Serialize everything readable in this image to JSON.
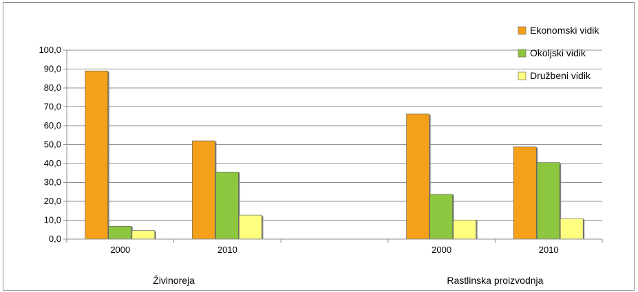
{
  "chart_data": {
    "type": "bar",
    "groups": [
      {
        "label": "Živinoreja",
        "categories": [
          "2000",
          "2010"
        ]
      },
      {
        "label": "Rastlinska proizvodnja",
        "categories": [
          "2000",
          "2010"
        ]
      }
    ],
    "series": [
      {
        "name": "Ekonomski vidik",
        "color": "#F5A01A",
        "values": [
          89.0,
          52.0,
          66.2,
          48.8
        ]
      },
      {
        "name": "Okoljski vidik",
        "color": "#8DC63F",
        "values": [
          6.8,
          35.5,
          23.7,
          40.5
        ]
      },
      {
        "name": "Družbeni vidik",
        "color": "#FFFF80",
        "values": [
          4.5,
          12.7,
          10.1,
          10.8
        ]
      }
    ],
    "yticks": [
      "0,0",
      "10,0",
      "20,0",
      "30,0",
      "40,0",
      "50,0",
      "60,0",
      "70,0",
      "80,0",
      "90,0",
      "100,0"
    ],
    "ylim": [
      0,
      100
    ],
    "grid": true,
    "legend": "top-right"
  }
}
